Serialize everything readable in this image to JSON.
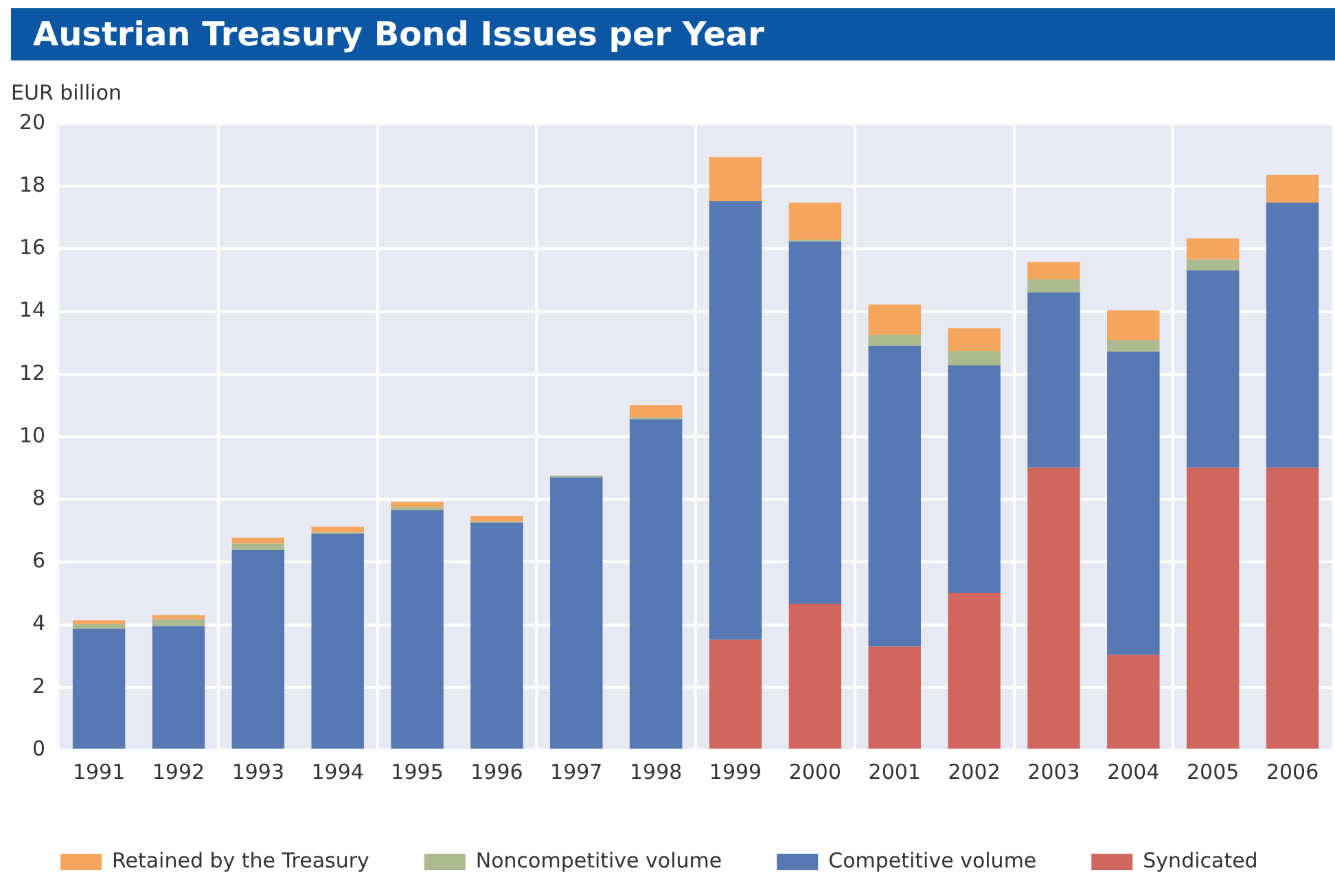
{
  "chart_data": {
    "type": "bar",
    "title": "Austrian Treasury Bond Issues per Year",
    "ylabel": "EUR billion",
    "stacked": true,
    "categories": [
      "1991",
      "1992",
      "1993",
      "1994",
      "1995",
      "1996",
      "1997",
      "1998",
      "1999",
      "2000",
      "2001",
      "2002",
      "2003",
      "2004",
      "2005",
      "2006"
    ],
    "series": [
      {
        "name": "Syndicated",
        "color": "#cf675e",
        "values": [
          0,
          0,
          0,
          0,
          0,
          0,
          0,
          0,
          3.52,
          4.67,
          3.3,
          5.02,
          9.02,
          3.04,
          9.02,
          9.02
        ]
      },
      {
        "name": "Competitive volume",
        "color": "#5679b3",
        "values": [
          3.87,
          3.96,
          6.38,
          6.91,
          7.66,
          7.26,
          8.7,
          10.56,
          14.0,
          11.57,
          9.6,
          7.26,
          5.59,
          9.68,
          6.3,
          8.46
        ]
      },
      {
        "name": "Noncompetitive volume",
        "color": "#adb98e",
        "values": [
          0.15,
          0.22,
          0.21,
          0.03,
          0.09,
          0.03,
          0.06,
          0.06,
          0,
          0.05,
          0.35,
          0.46,
          0.42,
          0.37,
          0.35,
          0
        ]
      },
      {
        "name": "Retained by the Treasury",
        "color": "#f4a65e",
        "values": [
          0.12,
          0.13,
          0.19,
          0.19,
          0.17,
          0.19,
          0,
          0.39,
          1.41,
          1.19,
          0.97,
          0.73,
          0.55,
          0.95,
          0.66,
          0.88
        ]
      }
    ],
    "ylim": [
      0,
      20
    ],
    "yticks": [
      0,
      2,
      4,
      6,
      8,
      10,
      12,
      14,
      16,
      18,
      20
    ],
    "grid": true,
    "legend": "bottom left"
  }
}
